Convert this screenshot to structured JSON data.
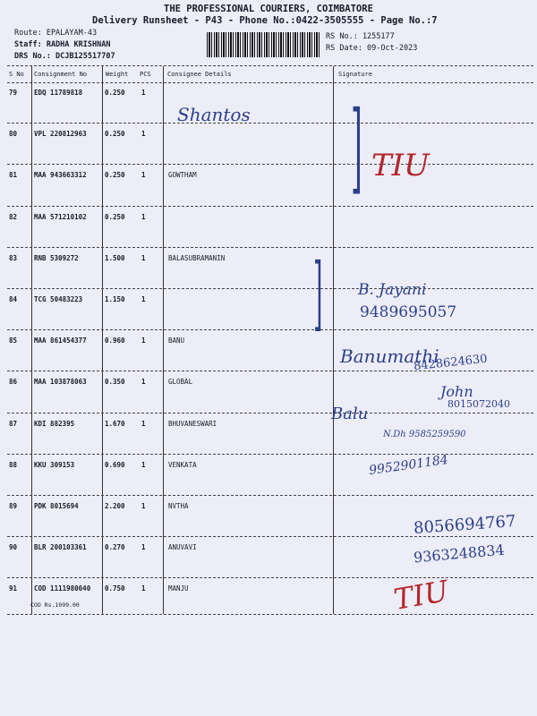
{
  "header": {
    "company": "THE PROFESSIONAL COURIERS, COIMBATORE",
    "subtitle": "Delivery Runsheet - P43 - Phone No.:0422-3505555 - Page No.:7",
    "route": "Route: EPALAYAM-43",
    "staff": "Staff: RADHA KRISHNAN",
    "drs": "DRS No.: DCJB125517707",
    "rs_no": "RS No.: 1255177",
    "rs_date": "RS Date: 09-Oct-2023"
  },
  "columns": [
    "S No",
    "Consignment No",
    "Weight",
    "PCS",
    "Consignee Details",
    "Signature"
  ],
  "rows": [
    {
      "sno": "79",
      "cn": "EDQ 11789818",
      "wt": "0.250",
      "pcs": "1",
      "name": ""
    },
    {
      "sno": "80",
      "cn": "VPL 220812963",
      "wt": "0.250",
      "pcs": "1",
      "name": ""
    },
    {
      "sno": "81",
      "cn": "MAA 943663312",
      "wt": "0.250",
      "pcs": "1",
      "name": "GOWTHAM"
    },
    {
      "sno": "82",
      "cn": "MAA 571210102",
      "wt": "0.250",
      "pcs": "1",
      "name": ""
    },
    {
      "sno": "83",
      "cn": "RNB 5309272",
      "wt": "1.500",
      "pcs": "1",
      "name": "BALASUBRAMANIN"
    },
    {
      "sno": "84",
      "cn": "TCG 50483223",
      "wt": "1.150",
      "pcs": "1",
      "name": ""
    },
    {
      "sno": "85",
      "cn": "MAA 861454377",
      "wt": "0.960",
      "pcs": "1",
      "name": "BANU"
    },
    {
      "sno": "86",
      "cn": "MAA 103878063",
      "wt": "0.350",
      "pcs": "1",
      "name": "GLOBAL"
    },
    {
      "sno": "87",
      "cn": "KDI 882395",
      "wt": "1.670",
      "pcs": "1",
      "name": "BHUVANESWARI"
    },
    {
      "sno": "88",
      "cn": "KKU 309153",
      "wt": "0.690",
      "pcs": "1",
      "name": "VENKATA"
    },
    {
      "sno": "89",
      "cn": "PDK 8015694",
      "wt": "2.200",
      "pcs": "1",
      "name": "NVTHA"
    },
    {
      "sno": "90",
      "cn": "BLR 200103361",
      "wt": "0.270",
      "pcs": "1",
      "name": "ANUVAVI"
    },
    {
      "sno": "91",
      "cn": "COD 1111980040",
      "wt": "0.750",
      "pcs": "1",
      "name": "MANJU"
    }
  ],
  "cod_note": "COD Rs.1099.00",
  "handwriting": {
    "sig_79": "Shantos",
    "tiu_top": "TIU",
    "b_jayani": "B. Jayani",
    "phone_1": "9489695057",
    "banu_sig": "Banumathi",
    "phone_2": "8428624630",
    "john": "John",
    "phone_3": "8015072040",
    "balu": "Balu",
    "ndh": "N.Dh 9585259590",
    "phone_4": "9952901184",
    "phone_5": "8056694767",
    "phone_6": "9363248834",
    "tiu_bottom": "TIU"
  },
  "colors": {
    "paper": "#ededf8",
    "pen_blue": "#2a3f8a",
    "pen_red": "#b2262a"
  }
}
